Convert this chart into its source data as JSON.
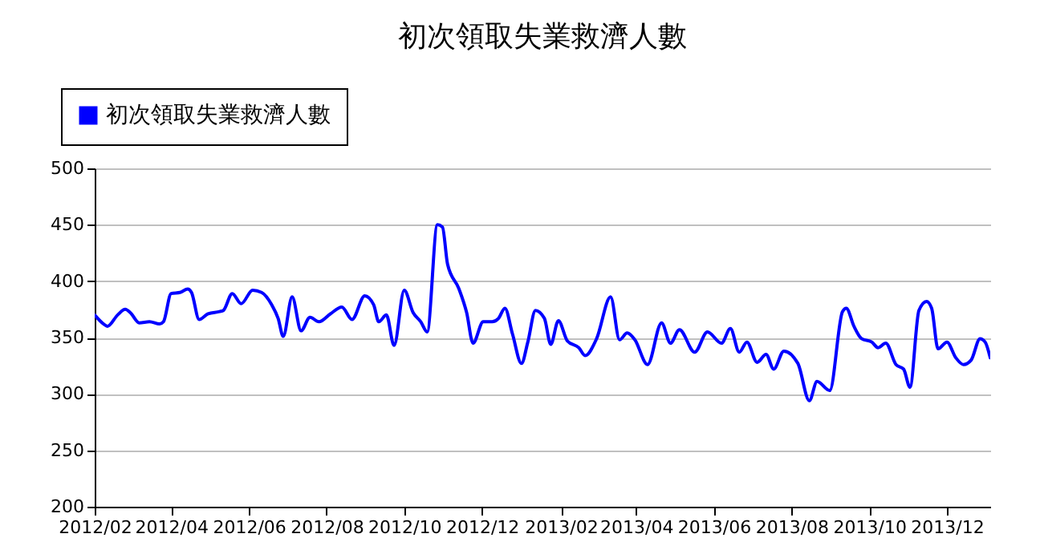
{
  "chart_data": {
    "type": "line",
    "title": "初次領取失業救濟人數",
    "legend": "top left",
    "grid": "y",
    "marker": "none",
    "line_style": "solid",
    "xlim": [
      "2012-02-01",
      "2014-01-04"
    ],
    "xticks": [
      {
        "value": "2012-02",
        "label": "2012/02"
      },
      {
        "value": "2012-04",
        "label": "2012/04"
      },
      {
        "value": "2012-06",
        "label": "2012/06"
      },
      {
        "value": "2012-08",
        "label": "2012/08"
      },
      {
        "value": "2012-10",
        "label": "2012/10"
      },
      {
        "value": "2012-12",
        "label": "2012/12"
      },
      {
        "value": "2013-02",
        "label": "2013/02"
      },
      {
        "value": "2013-04",
        "label": "2013/04"
      },
      {
        "value": "2013-06",
        "label": "2013/06"
      },
      {
        "value": "2013-08",
        "label": "2013/08"
      },
      {
        "value": "2013-10",
        "label": "2013/10"
      },
      {
        "value": "2013-12",
        "label": "2013/12"
      }
    ],
    "ylim": [
      200,
      500
    ],
    "yticks": [
      200,
      250,
      300,
      350,
      400,
      450,
      500
    ],
    "x": [
      "2012-02-01",
      "2012-02-08",
      "2012-02-11",
      "2012-02-19",
      "2012-02-25",
      "2012-02-29",
      "2012-03-07",
      "2012-03-15",
      "2012-03-23",
      "2012-03-26",
      "2012-04-01",
      "2012-04-08",
      "2012-04-14",
      "2012-04-17",
      "2012-04-23",
      "2012-04-30",
      "2012-05-09",
      "2012-05-12",
      "2012-05-19",
      "2012-05-26",
      "2012-06-04",
      "2012-06-11",
      "2012-06-19",
      "2012-06-24",
      "2012-06-28",
      "2012-07-05",
      "2012-07-12",
      "2012-07-19",
      "2012-07-26",
      "2012-08-04",
      "2012-08-13",
      "2012-08-21",
      "2012-08-31",
      "2012-09-07",
      "2012-09-11",
      "2012-09-17",
      "2012-09-23",
      "2012-10-01",
      "2012-10-08",
      "2012-10-14",
      "2012-10-19",
      "2012-10-27",
      "2012-10-31",
      "2012-11-04",
      "2012-11-13",
      "2012-11-19",
      "2012-11-24",
      "2012-12-02",
      "2012-12-09",
      "2012-12-14",
      "2012-12-19",
      "2012-12-25",
      "2013-01-01",
      "2013-01-06",
      "2013-01-12",
      "2013-01-19",
      "2013-01-24",
      "2013-01-30",
      "2013-02-06",
      "2013-02-15",
      "2013-02-20",
      "2013-03-01",
      "2013-03-12",
      "2013-03-19",
      "2013-03-25",
      "2013-03-31",
      "2013-04-10",
      "2013-04-21",
      "2013-04-28",
      "2013-05-05",
      "2013-05-17",
      "2013-05-27",
      "2013-06-07",
      "2013-06-14",
      "2013-06-21",
      "2013-06-27",
      "2013-07-05",
      "2013-07-12",
      "2013-07-18",
      "2013-07-26",
      "2013-08-06",
      "2013-08-15",
      "2013-08-21",
      "2013-08-31",
      "2013-09-10",
      "2013-09-13",
      "2013-09-19",
      "2013-09-25",
      "2013-10-03",
      "2013-10-08",
      "2013-10-14",
      "2013-10-22",
      "2013-10-28",
      "2013-11-02",
      "2013-11-09",
      "2013-11-15",
      "2013-11-19",
      "2013-11-24",
      "2013-12-01",
      "2013-12-08",
      "2013-12-14",
      "2013-12-20",
      "2013-12-27",
      "2013-12-31",
      "2014-01-04"
    ],
    "series": [
      {
        "name": "初次領取失業救濟人數",
        "color": "#0000ff",
        "values": [
          370,
          362,
          360,
          370,
          375,
          372,
          363,
          364,
          362,
          364,
          389,
          390,
          393,
          390,
          366,
          371,
          373,
          374,
          389,
          380,
          392,
          390,
          379,
          367,
          351,
          386,
          356,
          368,
          364,
          371,
          377,
          366,
          387,
          379,
          364,
          370,
          343,
          392,
          372,
          364,
          355,
          450,
          448,
          415,
          393,
          372,
          345,
          364,
          364,
          367,
          376,
          353,
          327,
          346,
          374,
          367,
          344,
          365,
          347,
          341,
          334,
          349,
          386,
          348,
          354,
          348,
          326,
          363,
          345,
          357,
          337,
          355,
          345,
          358,
          337,
          346,
          328,
          335,
          322,
          338,
          327,
          294,
          311,
          303,
          373,
          376,
          360,
          349,
          346,
          341,
          345,
          326,
          322,
          306,
          374,
          382,
          376,
          340,
          346,
          332,
          326,
          330,
          349,
          346,
          332
        ]
      }
    ]
  }
}
